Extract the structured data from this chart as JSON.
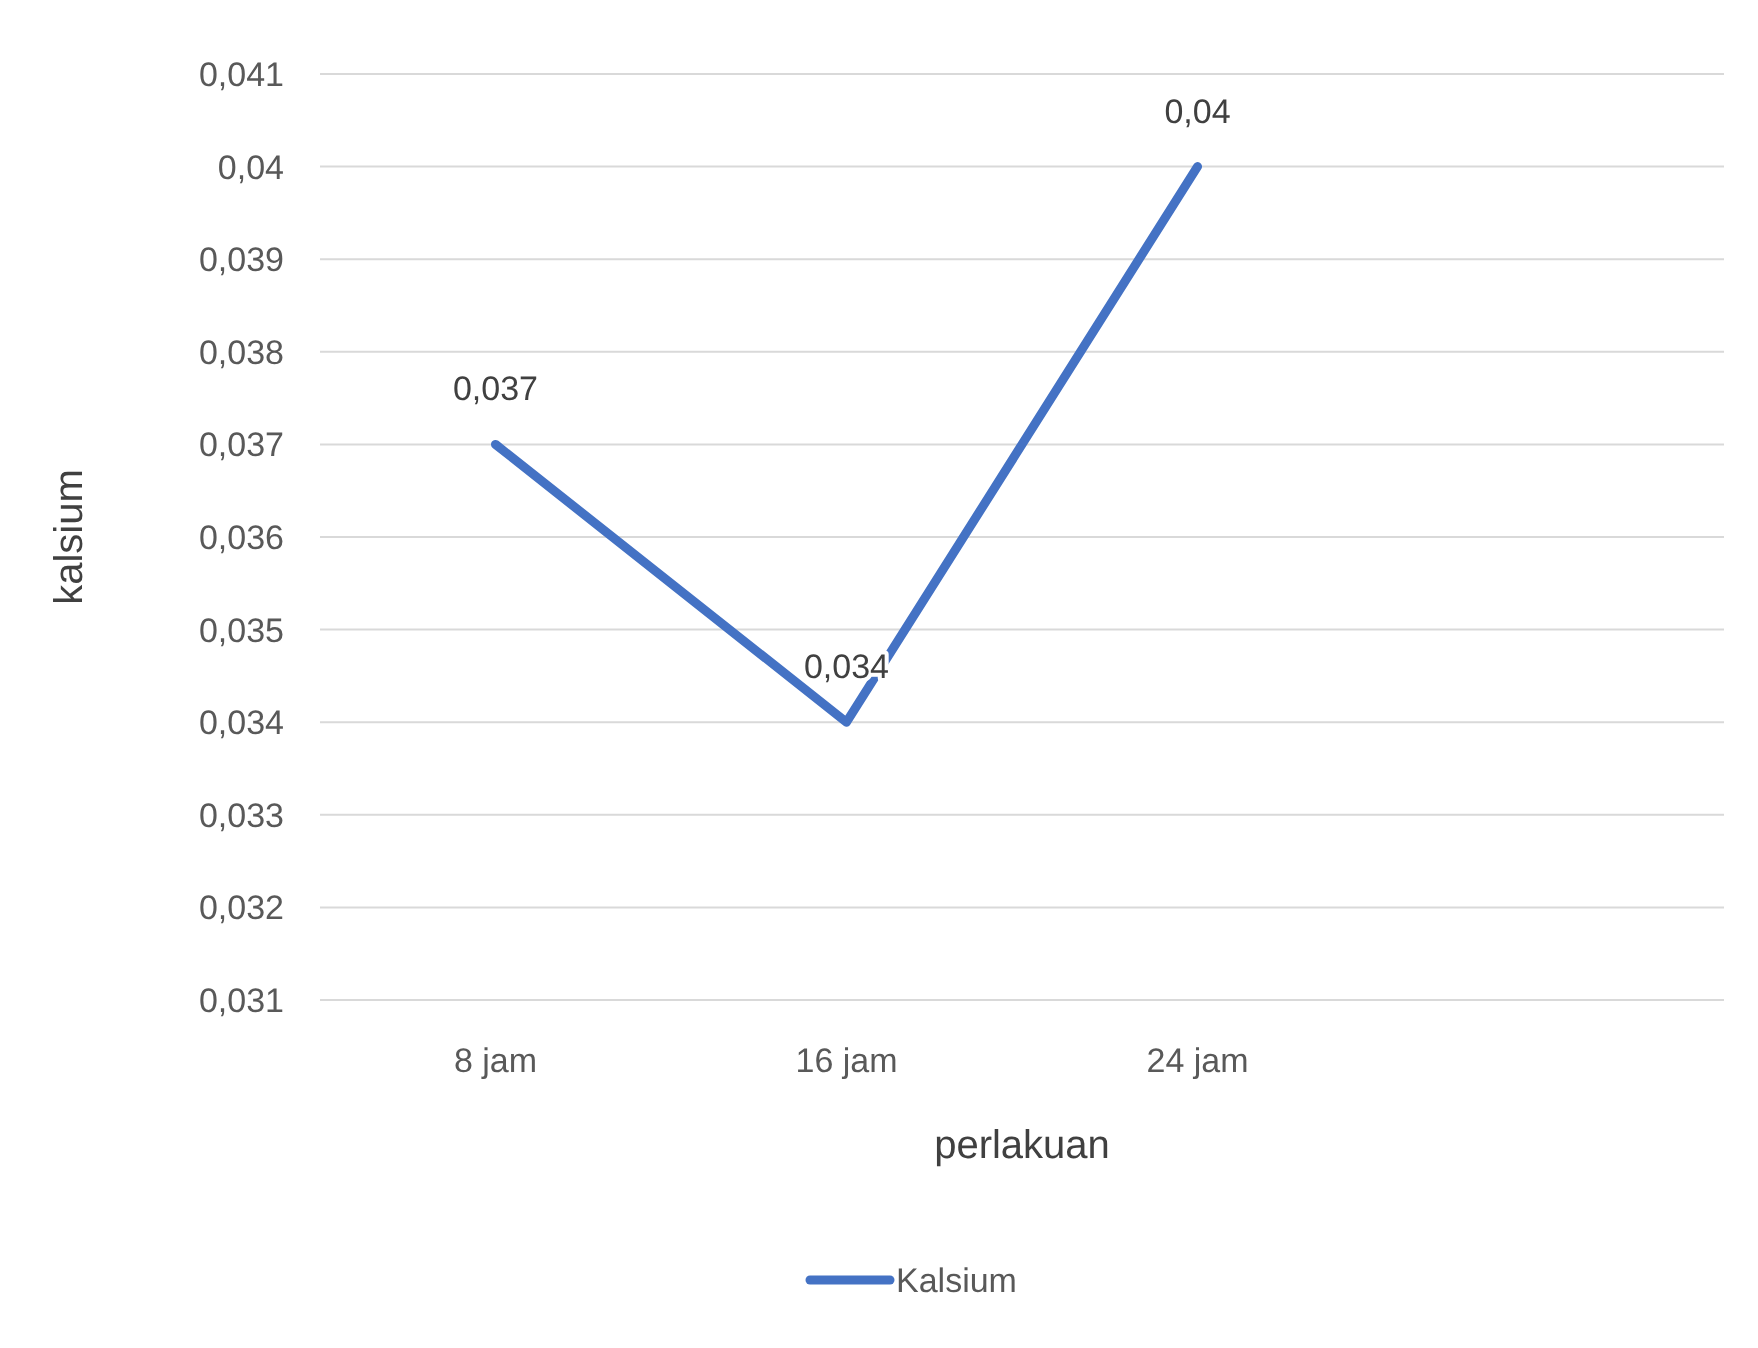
{
  "chart_data": {
    "type": "line",
    "xlabel": "perlakuan",
    "ylabel": "kalsium",
    "categories": [
      "8 jam",
      "16 jam",
      "24 jam",
      null
    ],
    "series": [
      {
        "name": "Kalsium",
        "color": "#4472c4",
        "values": [
          0.037,
          0.034,
          0.04,
          null
        ],
        "value_labels": [
          "0,037",
          "0,034",
          "0,04",
          null
        ]
      }
    ],
    "ylim": [
      0.031,
      0.041
    ],
    "yticks": [
      {
        "value": 0.031,
        "label": "0,031"
      },
      {
        "value": 0.032,
        "label": "0,032"
      },
      {
        "value": 0.033,
        "label": "0,033"
      },
      {
        "value": 0.034,
        "label": "0,034"
      },
      {
        "value": 0.035,
        "label": "0,035"
      },
      {
        "value": 0.036,
        "label": "0,036"
      },
      {
        "value": 0.037,
        "label": "0,037"
      },
      {
        "value": 0.038,
        "label": "0,038"
      },
      {
        "value": 0.039,
        "label": "0,039"
      },
      {
        "value": 0.04,
        "label": "0,04"
      },
      {
        "value": 0.041,
        "label": "0,041"
      }
    ],
    "grid": "y",
    "legend": "bottom"
  }
}
